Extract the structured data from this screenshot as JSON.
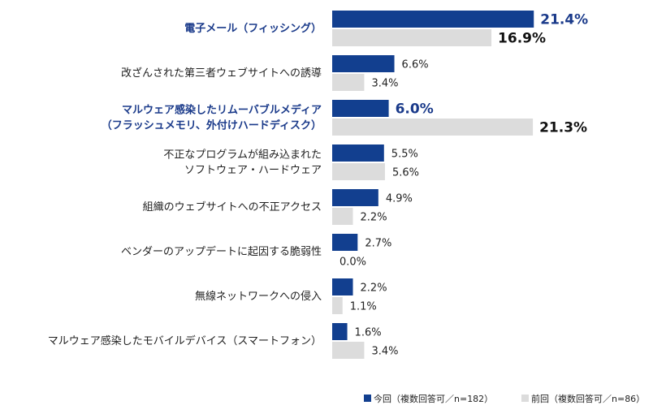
{
  "chart_data": {
    "type": "bar",
    "orientation": "horizontal",
    "categories": [
      [
        "電子メール（フィッシング）"
      ],
      [
        "改ざんされた第三者ウェブサイトへの誘導"
      ],
      [
        "マルウェア感染したリムーバブルメディア",
        "（フラッシュメモリ、外付けハードディスク）"
      ],
      [
        "不正なプログラムが組み込まれた",
        "ソフトウェア・ハードウェア"
      ],
      [
        "組織のウェブサイトへの不正アクセス"
      ],
      [
        "ベンダーのアップデートに起因する脆弱性"
      ],
      [
        "無線ネットワークへの侵入"
      ],
      [
        "マルウェア感染したモバイルデバイス（スマートフォン）"
      ]
    ],
    "highlighted_categories": [
      0,
      2
    ],
    "series": [
      {
        "name": "今回（複数回答可／n=182）",
        "color": "#123f8f",
        "values": [
          21.4,
          6.6,
          6.0,
          5.5,
          4.9,
          2.7,
          2.2,
          1.6
        ],
        "labels": [
          "21.4%",
          "6.6%",
          "6.0%",
          "5.5%",
          "4.9%",
          "2.7%",
          "2.2%",
          "1.6%"
        ]
      },
      {
        "name": "前回（複数回答可／n=86）",
        "color": "#dcdcdc",
        "values": [
          16.9,
          3.4,
          21.3,
          5.6,
          2.2,
          0.0,
          1.1,
          3.4
        ],
        "labels": [
          "16.9%",
          "3.4%",
          "21.3%",
          "5.6%",
          "2.2%",
          "0.0%",
          "1.1%",
          "3.4%"
        ]
      }
    ],
    "highlighted_labels": [
      [
        0,
        0
      ],
      [
        0,
        2
      ],
      [
        1,
        0
      ],
      [
        1,
        2
      ]
    ],
    "legend_position": "bottom-right",
    "grid": false,
    "xlim": [
      0,
      25
    ]
  }
}
